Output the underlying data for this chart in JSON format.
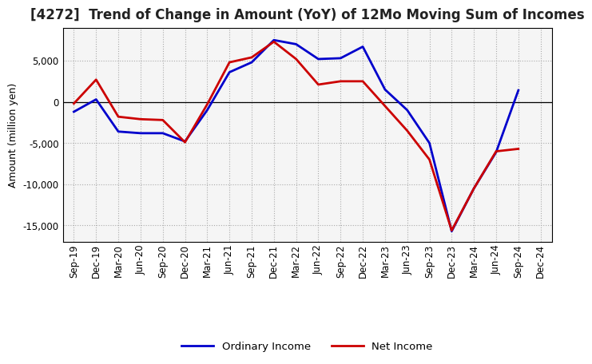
{
  "title": "[4272]  Trend of Change in Amount (YoY) of 12Mo Moving Sum of Incomes",
  "ylabel": "Amount (million yen)",
  "background_color": "#ffffff",
  "plot_bg_color": "#f5f5f5",
  "grid_color": "#aaaaaa",
  "x_labels": [
    "Sep-19",
    "Dec-19",
    "Mar-20",
    "Jun-20",
    "Sep-20",
    "Dec-20",
    "Mar-21",
    "Jun-21",
    "Sep-21",
    "Dec-21",
    "Mar-22",
    "Jun-22",
    "Sep-22",
    "Dec-22",
    "Mar-23",
    "Jun-23",
    "Sep-23",
    "Dec-23",
    "Mar-24",
    "Jun-24",
    "Sep-24",
    "Dec-24"
  ],
  "ordinary_income": [
    -1200,
    300,
    -3600,
    -3800,
    -3800,
    -4800,
    -1000,
    3600,
    4800,
    7500,
    7000,
    5200,
    5300,
    6700,
    1500,
    -1000,
    -5000,
    -15700,
    -10500,
    -6100,
    1400,
    null
  ],
  "net_income": [
    -200,
    2700,
    -1800,
    -2100,
    -2200,
    -4900,
    -300,
    4800,
    5400,
    7300,
    5200,
    2100,
    2500,
    2500,
    -500,
    -3500,
    -7000,
    -15600,
    -10500,
    -6000,
    -5700,
    null
  ],
  "ordinary_color": "#0000cc",
  "net_color": "#cc0000",
  "line_width": 2.0,
  "ylim": [
    -17000,
    9000
  ],
  "yticks": [
    -15000,
    -10000,
    -5000,
    0,
    5000
  ],
  "legend_labels": [
    "Ordinary Income",
    "Net Income"
  ],
  "title_fontsize": 12,
  "axis_fontsize": 9,
  "tick_fontsize": 8.5
}
